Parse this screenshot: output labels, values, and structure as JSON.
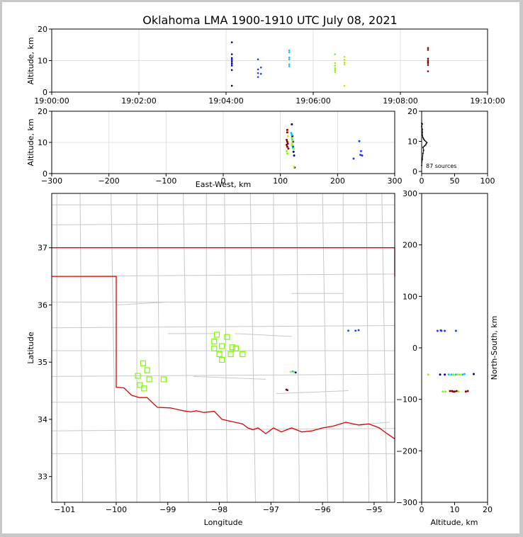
{
  "chart_data": [
    {
      "id": "time_altitude",
      "type": "scatter",
      "title": "Oklahoma LMA 1900-1910 UTC July 08, 2021",
      "xlabel": "",
      "ylabel": "Altitude, km",
      "xlim": [
        "19:00:00",
        "19:10:00"
      ],
      "ylim": [
        0,
        20
      ],
      "xticks": [
        "19:00:00",
        "19:02:00",
        "19:04:00",
        "19:06:00",
        "19:08:00",
        "19:10:00"
      ],
      "yticks": [
        0,
        10,
        20
      ],
      "grid": true,
      "points": [
        {
          "t": "19:04:08",
          "z": 15.8,
          "c": "#00008b"
        },
        {
          "t": "19:04:08",
          "z": 12.0,
          "c": "#00008b"
        },
        {
          "t": "19:04:08",
          "z": 10.8,
          "c": "#00008b"
        },
        {
          "t": "19:04:08",
          "z": 10.2,
          "c": "#00008b"
        },
        {
          "t": "19:04:08",
          "z": 9.6,
          "c": "#00008b"
        },
        {
          "t": "19:04:08",
          "z": 9.0,
          "c": "#00008b"
        },
        {
          "t": "19:04:08",
          "z": 8.4,
          "c": "#00008b"
        },
        {
          "t": "19:04:08",
          "z": 7.0,
          "c": "#00008b"
        },
        {
          "t": "19:04:08",
          "z": 2.0,
          "c": "#00008b"
        },
        {
          "t": "19:04:44",
          "z": 10.4,
          "c": "#1e3cff"
        },
        {
          "t": "19:04:44",
          "z": 7.2,
          "c": "#1e3cff"
        },
        {
          "t": "19:04:44",
          "z": 6.0,
          "c": "#1e3cff"
        },
        {
          "t": "19:04:44",
          "z": 4.8,
          "c": "#1e3cff"
        },
        {
          "t": "19:04:48",
          "z": 7.8,
          "c": "#1e3cff"
        },
        {
          "t": "19:04:48",
          "z": 5.8,
          "c": "#1e3cff"
        },
        {
          "t": "19:05:27",
          "z": 13.2,
          "c": "#00c8ff"
        },
        {
          "t": "19:05:27",
          "z": 12.6,
          "c": "#00c8ff"
        },
        {
          "t": "19:05:27",
          "z": 11.0,
          "c": "#00c8ff"
        },
        {
          "t": "19:05:27",
          "z": 10.4,
          "c": "#00c8ff"
        },
        {
          "t": "19:05:27",
          "z": 8.8,
          "c": "#00c8ff"
        },
        {
          "t": "19:05:27",
          "z": 8.2,
          "c": "#00c8ff"
        },
        {
          "t": "19:06:30",
          "z": 12.0,
          "c": "#7cfc00"
        },
        {
          "t": "19:06:30",
          "z": 9.2,
          "c": "#7cfc00"
        },
        {
          "t": "19:06:30",
          "z": 8.4,
          "c": "#7cfc00"
        },
        {
          "t": "19:06:30",
          "z": 7.6,
          "c": "#7cfc00"
        },
        {
          "t": "19:06:30",
          "z": 7.0,
          "c": "#7cfc00"
        },
        {
          "t": "19:06:30",
          "z": 6.4,
          "c": "#7cfc00"
        },
        {
          "t": "19:06:43",
          "z": 11.2,
          "c": "#b4f000"
        },
        {
          "t": "19:06:43",
          "z": 10.2,
          "c": "#b4f000"
        },
        {
          "t": "19:06:43",
          "z": 9.4,
          "c": "#b4f000"
        },
        {
          "t": "19:06:43",
          "z": 8.8,
          "c": "#b4f000"
        },
        {
          "t": "19:06:43",
          "z": 2.0,
          "c": "#b4f000"
        },
        {
          "t": "19:08:38",
          "z": 14.0,
          "c": "#8b0000"
        },
        {
          "t": "19:08:38",
          "z": 13.4,
          "c": "#8b0000"
        },
        {
          "t": "19:08:38",
          "z": 10.6,
          "c": "#8b0000"
        },
        {
          "t": "19:08:38",
          "z": 10.0,
          "c": "#8b0000"
        },
        {
          "t": "19:08:38",
          "z": 9.6,
          "c": "#8b0000"
        },
        {
          "t": "19:08:38",
          "z": 9.2,
          "c": "#8b0000"
        },
        {
          "t": "19:08:38",
          "z": 8.6,
          "c": "#8b0000"
        },
        {
          "t": "19:08:38",
          "z": 6.6,
          "c": "#8b0000"
        }
      ]
    },
    {
      "id": "ew_altitude",
      "type": "scatter",
      "xlabel": "East-West, km",
      "ylabel": "Altitude, km",
      "xlim": [
        -300,
        300
      ],
      "ylim": [
        0,
        20
      ],
      "xticks": [
        -300,
        -200,
        -100,
        0,
        100,
        200,
        300
      ],
      "yticks": [
        0,
        10,
        20
      ],
      "grid": true,
      "points": [
        {
          "x": 112,
          "z": 14.0,
          "c": "#8b0000"
        },
        {
          "x": 112,
          "z": 13.2,
          "c": "#8b0000"
        },
        {
          "x": 111,
          "z": 10.8,
          "c": "#8b0000"
        },
        {
          "x": 112,
          "z": 10.2,
          "c": "#8b0000"
        },
        {
          "x": 113,
          "z": 9.6,
          "c": "#8b0000"
        },
        {
          "x": 111,
          "z": 9.2,
          "c": "#8b0000"
        },
        {
          "x": 112,
          "z": 8.6,
          "c": "#8b0000"
        },
        {
          "x": 114,
          "z": 8.0,
          "c": "#8b0000"
        },
        {
          "x": 111,
          "z": 7.2,
          "c": "#7cfc00"
        },
        {
          "x": 112,
          "z": 6.4,
          "c": "#7cfc00"
        },
        {
          "x": 113,
          "z": 12.0,
          "c": "#b4f000"
        },
        {
          "x": 120,
          "z": 15.8,
          "c": "#00008b"
        },
        {
          "x": 121,
          "z": 12.0,
          "c": "#00008b"
        },
        {
          "x": 122,
          "z": 10.2,
          "c": "#00008b"
        },
        {
          "x": 122,
          "z": 8.6,
          "c": "#00008b"
        },
        {
          "x": 123,
          "z": 7.0,
          "c": "#00008b"
        },
        {
          "x": 124,
          "z": 5.8,
          "c": "#00008b"
        },
        {
          "x": 125,
          "z": 2.0,
          "c": "#00008b"
        },
        {
          "x": 119,
          "z": 13.0,
          "c": "#00c8ff"
        },
        {
          "x": 120,
          "z": 12.4,
          "c": "#00c8ff"
        },
        {
          "x": 121,
          "z": 10.8,
          "c": "#00c8ff"
        },
        {
          "x": 121,
          "z": 9.0,
          "c": "#00c8ff"
        },
        {
          "x": 122,
          "z": 8.2,
          "c": "#00c8ff"
        },
        {
          "x": 120,
          "z": 11.4,
          "c": "#7cfc00"
        },
        {
          "x": 121,
          "z": 10.6,
          "c": "#7cfc00"
        },
        {
          "x": 121,
          "z": 9.8,
          "c": "#b4f000"
        },
        {
          "x": 120,
          "z": 9.2,
          "c": "#b4f000"
        },
        {
          "x": 123,
          "z": 8.0,
          "c": "#7cfc00"
        },
        {
          "x": 124,
          "z": 2.2,
          "c": "#b4f000"
        },
        {
          "x": 238,
          "z": 10.4,
          "c": "#1e3cff"
        },
        {
          "x": 241,
          "z": 7.2,
          "c": "#1e3cff"
        },
        {
          "x": 240,
          "z": 6.0,
          "c": "#1e3cff"
        },
        {
          "x": 243,
          "z": 5.8,
          "c": "#1e3cff"
        },
        {
          "x": 228,
          "z": 4.8,
          "c": "#1e3cff"
        }
      ]
    },
    {
      "id": "altitude_histogram",
      "type": "line",
      "xlim": [
        0,
        100
      ],
      "ylim": [
        0,
        20
      ],
      "xticks": [
        0,
        50,
        100
      ],
      "yticks": [
        0,
        10,
        20
      ],
      "annotation": "87 sources",
      "profile": [
        [
          0,
          2
        ],
        [
          1,
          4
        ],
        [
          2,
          6
        ],
        [
          3,
          7
        ],
        [
          2,
          8
        ],
        [
          4,
          8.4
        ],
        [
          6,
          8.8
        ],
        [
          7,
          9.2
        ],
        [
          8,
          9.6
        ],
        [
          6,
          10
        ],
        [
          4,
          10.4
        ],
        [
          3,
          10.8
        ],
        [
          2,
          11.2
        ],
        [
          1,
          12
        ],
        [
          1,
          13
        ],
        [
          1,
          14
        ],
        [
          0,
          15
        ],
        [
          1,
          15.8
        ],
        [
          0,
          16
        ]
      ]
    },
    {
      "id": "plan_view",
      "type": "scatter",
      "xlabel": "Longitude",
      "ylabel": "Latitude",
      "xlim": [
        -101.25,
        -94.6
      ],
      "ylim": [
        32.55,
        37.95
      ],
      "xticks": [
        -101,
        -100,
        -99,
        -98,
        -97,
        -96,
        -95
      ],
      "yticks": [
        33,
        34,
        35,
        36,
        37
      ],
      "stations": [
        {
          "lon": -98.05,
          "lat": 35.48
        },
        {
          "lon": -97.85,
          "lat": 35.44
        },
        {
          "lon": -98.1,
          "lat": 35.36
        },
        {
          "lon": -97.95,
          "lat": 35.28
        },
        {
          "lon": -98.1,
          "lat": 35.24
        },
        {
          "lon": -97.75,
          "lat": 35.26
        },
        {
          "lon": -97.68,
          "lat": 35.24
        },
        {
          "lon": -98.0,
          "lat": 35.14
        },
        {
          "lon": -97.78,
          "lat": 35.14
        },
        {
          "lon": -97.55,
          "lat": 35.14
        },
        {
          "lon": -97.95,
          "lat": 35.04
        },
        {
          "lon": -99.48,
          "lat": 34.98
        },
        {
          "lon": -99.4,
          "lat": 34.86
        },
        {
          "lon": -99.58,
          "lat": 34.76
        },
        {
          "lon": -99.36,
          "lat": 34.7
        },
        {
          "lon": -99.08,
          "lat": 34.7
        },
        {
          "lon": -99.54,
          "lat": 34.6
        },
        {
          "lon": -99.46,
          "lat": 34.54
        }
      ],
      "points": [
        {
          "lon": -96.55,
          "lat": 34.83,
          "c": "#7cfc00"
        },
        {
          "lon": -96.58,
          "lat": 34.84,
          "c": "#00c8ff"
        },
        {
          "lon": -96.52,
          "lat": 34.82,
          "c": "#00008b"
        },
        {
          "lon": -96.62,
          "lat": 34.83,
          "c": "#b4f000"
        },
        {
          "lon": -96.68,
          "lat": 34.51,
          "c": "#8b0000"
        },
        {
          "lon": -96.7,
          "lat": 34.52,
          "c": "#8b0000"
        },
        {
          "lon": -95.36,
          "lat": 35.55,
          "c": "#1e3cff"
        },
        {
          "lon": -95.3,
          "lat": 35.56,
          "c": "#1e3cff"
        },
        {
          "lon": -95.5,
          "lat": 35.55,
          "c": "#1e3cff"
        }
      ]
    },
    {
      "id": "altitude_ns",
      "type": "scatter",
      "xlabel": "Altitude, km",
      "ylabel": "North-South, km",
      "xlim": [
        0,
        20
      ],
      "ylim": [
        -300,
        300
      ],
      "xticks": [
        0,
        10,
        20
      ],
      "yticks": [
        -300,
        -200,
        -100,
        0,
        100,
        200,
        300
      ],
      "points": [
        {
          "z": 4.8,
          "y": 33,
          "c": "#1e3cff"
        },
        {
          "z": 5.8,
          "y": 34,
          "c": "#1e3cff"
        },
        {
          "z": 6.0,
          "y": 33,
          "c": "#1e3cff"
        },
        {
          "z": 7.0,
          "y": 33,
          "c": "#1e3cff"
        },
        {
          "z": 10.4,
          "y": 33,
          "c": "#1e3cff"
        },
        {
          "z": 2.0,
          "y": -52,
          "c": "#b4f000"
        },
        {
          "z": 5.6,
          "y": -52,
          "c": "#00008b"
        },
        {
          "z": 7.0,
          "y": -52,
          "c": "#00008b"
        },
        {
          "z": 8.2,
          "y": -52,
          "c": "#00c8ff"
        },
        {
          "z": 9.0,
          "y": -52,
          "c": "#00c8ff"
        },
        {
          "z": 9.6,
          "y": -52,
          "c": "#7cfc00"
        },
        {
          "z": 10.4,
          "y": -52,
          "c": "#00c8ff"
        },
        {
          "z": 11.0,
          "y": -52,
          "c": "#b4f000"
        },
        {
          "z": 11.6,
          "y": -52,
          "c": "#7cfc00"
        },
        {
          "z": 12.4,
          "y": -52,
          "c": "#00c8ff"
        },
        {
          "z": 13.0,
          "y": -51,
          "c": "#00c8ff"
        },
        {
          "z": 15.8,
          "y": -51,
          "c": "#00008b"
        },
        {
          "z": 6.4,
          "y": -85,
          "c": "#7cfc00"
        },
        {
          "z": 7.2,
          "y": -85,
          "c": "#7cfc00"
        },
        {
          "z": 8.6,
          "y": -84,
          "c": "#8b0000"
        },
        {
          "z": 9.2,
          "y": -84,
          "c": "#8b0000"
        },
        {
          "z": 9.6,
          "y": -85,
          "c": "#8b0000"
        },
        {
          "z": 10.0,
          "y": -85,
          "c": "#8b0000"
        },
        {
          "z": 10.6,
          "y": -84,
          "c": "#8b0000"
        },
        {
          "z": 11.2,
          "y": -85,
          "c": "#7cfc00"
        },
        {
          "z": 13.4,
          "y": -85,
          "c": "#8b0000"
        },
        {
          "z": 14.0,
          "y": -84,
          "c": "#8b0000"
        }
      ]
    }
  ],
  "colors": {
    "border": "#dd0000",
    "county": "#c8c8c8",
    "station": "#7cfc00",
    "grid": "#e0e0e0"
  }
}
